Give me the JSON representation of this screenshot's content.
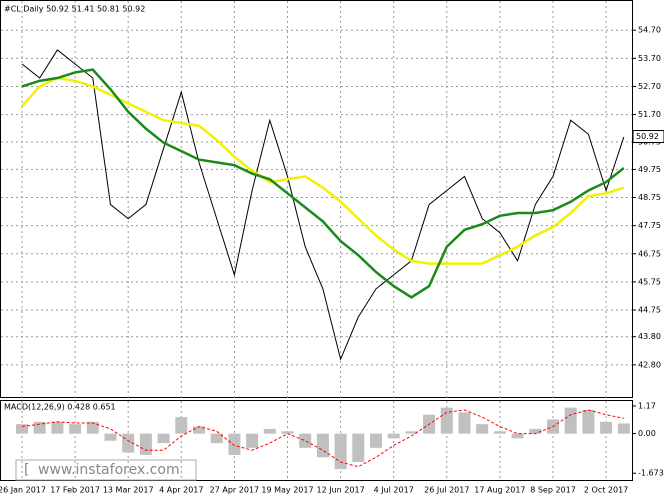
{
  "chart_data": [
    {
      "type": "line",
      "title": "#CL,Daily 50.92 51.41 50.81 50.92",
      "categories": [
        "26 Jan 2017",
        null,
        null,
        "17 Feb 2017",
        null,
        null,
        "13 Mar 2017",
        null,
        null,
        "4 Apr 2017",
        null,
        null,
        "27 Apr 2017",
        null,
        null,
        "19 May 2017",
        null,
        null,
        "12 Jun 2017",
        null,
        null,
        "4 Jul 2017",
        null,
        null,
        "26 Jul 2017",
        null,
        null,
        "17 Aug 2017",
        null,
        null,
        "8 Sep 2017",
        null,
        null,
        "2 Oct 2017",
        null
      ],
      "series": [
        {
          "color": "#000000",
          "values": [
            53.5,
            53.0,
            54.0,
            53.5,
            53.0,
            48.5,
            48.0,
            48.5,
            50.5,
            52.5,
            50.0,
            48.0,
            46.0,
            49.0,
            51.5,
            49.5,
            47.0,
            45.5,
            43.0,
            44.5,
            45.5,
            46.0,
            46.5,
            48.5,
            49.0,
            49.5,
            48.0,
            47.5,
            46.5,
            48.5,
            49.5,
            51.5,
            51.0,
            49.0,
            50.9
          ]
        },
        {
          "color": "#f2f200",
          "values": [
            52.0,
            52.7,
            53.0,
            52.9,
            52.7,
            52.4,
            52.1,
            51.8,
            51.5,
            51.4,
            51.3,
            50.8,
            50.2,
            49.7,
            49.3,
            49.4,
            49.5,
            49.1,
            48.6,
            48.0,
            47.4,
            46.9,
            46.5,
            46.4,
            46.4,
            46.4,
            46.4,
            46.7,
            47.0,
            47.4,
            47.7,
            48.2,
            48.8,
            48.9,
            49.1
          ]
        },
        {
          "color": "#1a8a1a",
          "values": [
            52.7,
            52.9,
            53.0,
            53.2,
            53.3,
            52.6,
            51.8,
            51.2,
            50.7,
            50.4,
            50.1,
            50.0,
            49.9,
            49.6,
            49.4,
            48.9,
            48.4,
            47.9,
            47.2,
            46.7,
            46.1,
            45.6,
            45.2,
            45.6,
            47.0,
            47.6,
            47.8,
            48.1,
            48.2,
            48.2,
            48.3,
            48.6,
            49.0,
            49.3,
            49.8
          ]
        }
      ],
      "ylim": [
        41.62,
        55.74
      ],
      "yticks": [
        {
          "value": 54.7,
          "label": "54.70"
        },
        {
          "value": 53.7,
          "label": "53.70"
        },
        {
          "value": 52.7,
          "label": "52.70"
        },
        {
          "value": 51.7,
          "label": "51.70"
        },
        50.73,
        49.75,
        48.75,
        47.75,
        46.75,
        45.75,
        44.75,
        {
          "value": 43.8,
          "label": "43.80"
        },
        {
          "value": 42.8,
          "label": "42.80"
        }
      ],
      "last_price": 50.92,
      "grid": true
    },
    {
      "type": "bar",
      "title": "MACD(12,26,9) 0.428 0.651",
      "values": [
        0.4,
        0.5,
        0.5,
        0.4,
        0.5,
        -0.3,
        -0.8,
        -0.9,
        -0.4,
        0.7,
        0.3,
        -0.4,
        -0.9,
        -0.6,
        0.2,
        0.1,
        -0.6,
        -1.0,
        -1.5,
        -1.2,
        -0.6,
        -0.2,
        0.1,
        0.8,
        1.1,
        0.9,
        0.4,
        0.1,
        -0.2,
        0.2,
        0.6,
        1.1,
        1.0,
        0.5,
        0.43
      ],
      "color": "#c0c0c0",
      "line_values": [
        0.3,
        0.4,
        0.5,
        0.45,
        0.45,
        0.2,
        -0.3,
        -0.7,
        -0.7,
        -0.1,
        0.3,
        0.1,
        -0.5,
        -0.7,
        -0.4,
        0.0,
        -0.3,
        -0.7,
        -1.2,
        -1.4,
        -1.0,
        -0.5,
        -0.1,
        0.4,
        0.9,
        1.0,
        0.7,
        0.3,
        0.0,
        0.0,
        0.3,
        0.8,
        1.0,
        0.8,
        0.65
      ],
      "line_color": "#ff0000",
      "ylim": [
        -1.96,
        1.38
      ],
      "yticks": [
        1.17,
        {
          "value": 0,
          "label": "0.00"
        },
        -1.673
      ]
    }
  ],
  "watermark": "www.instaforex.com"
}
